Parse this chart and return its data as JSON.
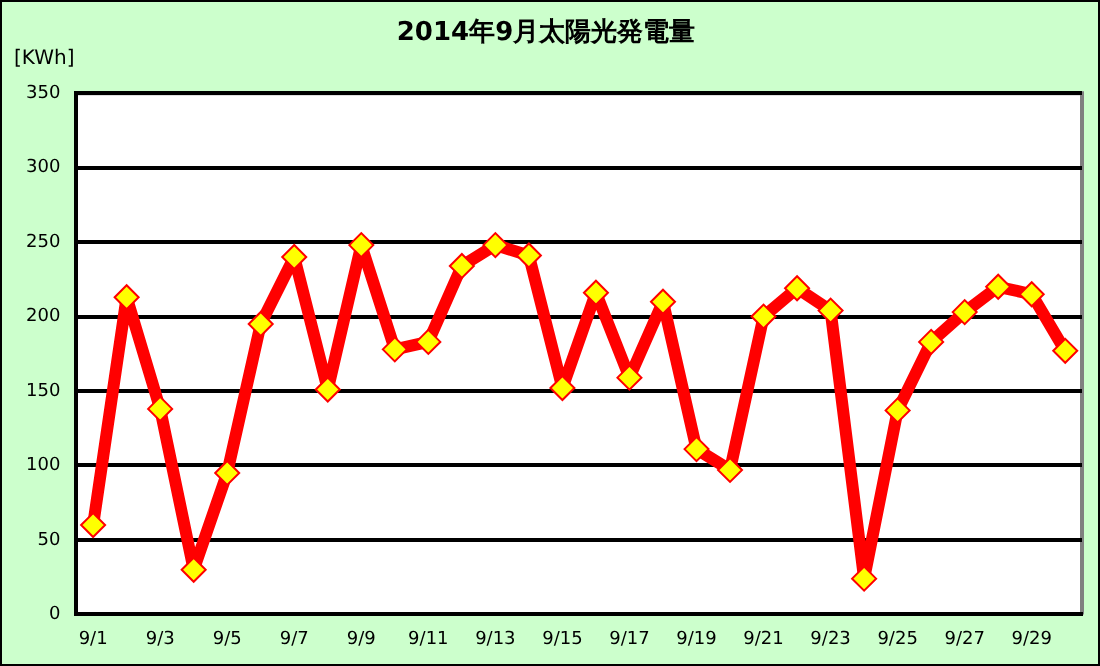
{
  "chart_data": {
    "type": "line",
    "title": "2014年9月太陽光発電量",
    "ylabel": "[KWh]",
    "categories": [
      "9/1",
      null,
      "9/3",
      null,
      "9/5",
      null,
      "9/7",
      null,
      "9/9",
      null,
      "9/11",
      null,
      "9/13",
      null,
      "9/15",
      null,
      "9/17",
      null,
      "9/19",
      null,
      "9/21",
      null,
      "9/23",
      null,
      "9/25",
      null,
      "9/27",
      null,
      "9/29",
      null
    ],
    "series": [
      {
        "color": "#ff0000",
        "values": [
          60,
          213,
          138,
          30,
          95,
          195,
          240,
          151,
          248,
          178,
          183,
          234,
          248,
          241,
          152,
          216,
          159,
          210,
          111,
          97,
          200,
          219,
          204,
          24,
          137,
          183,
          203,
          220,
          215,
          177
        ]
      }
    ],
    "ylim": [
      0,
      350
    ],
    "yticks": [
      0,
      50,
      100,
      150,
      200,
      250,
      300,
      350
    ],
    "grid": "y",
    "legend": false,
    "marker": "diamond",
    "line_style": "solid"
  }
}
